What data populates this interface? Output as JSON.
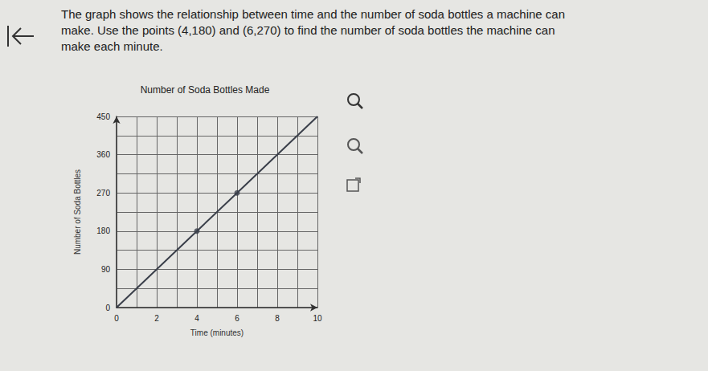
{
  "question": [
    "The graph shows the relationship between time and the number of soda bottles a machine can",
    "make. Use the points (4,180) and (6,270) to find the number of soda bottles the machine can",
    "make each minute."
  ],
  "chart_data": {
    "type": "line",
    "title": "Number of Soda Bottles Made",
    "x_label": "Time (minutes)",
    "y_label": "Number of Soda Bottles",
    "x": [
      0,
      4,
      6,
      10
    ],
    "values": [
      0,
      180,
      270,
      450
    ],
    "color": "#3a3f4a",
    "marked_points": {
      "x": [
        4,
        6
      ],
      "y": [
        180,
        270
      ]
    },
    "xlim": [
      0,
      10
    ],
    "xticks": [
      0,
      2,
      4,
      6,
      8,
      10
    ],
    "ylim": [
      0,
      450
    ],
    "yticks": [
      0,
      90,
      180,
      270,
      360,
      450
    ],
    "grid": true
  }
}
